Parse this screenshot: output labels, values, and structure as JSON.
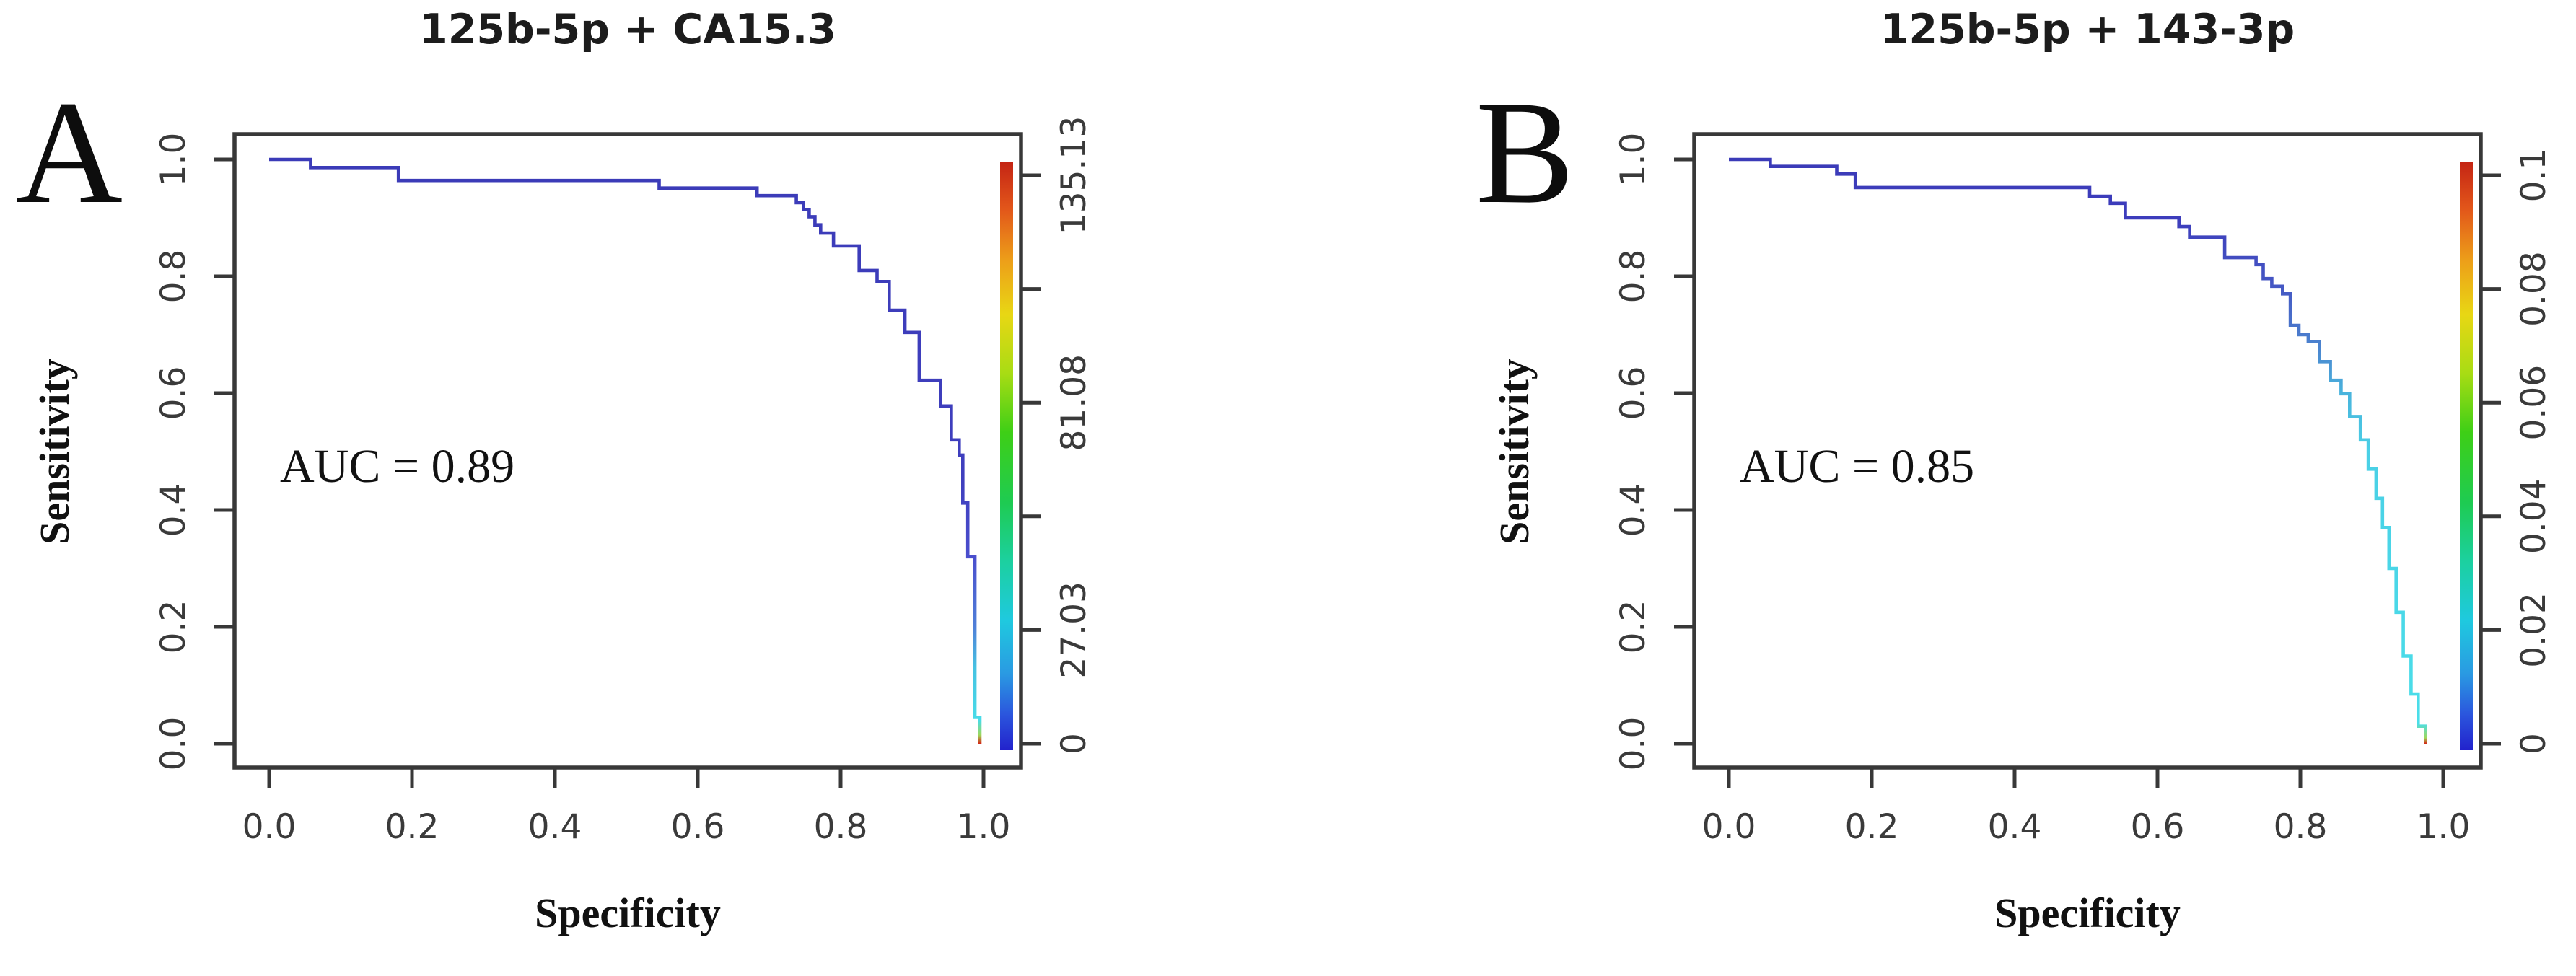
{
  "figure": {
    "background": "#ffffff",
    "panels": [
      {
        "label": "A",
        "title": "125b-5p + CA15.3",
        "auc_text": "AUC = 0.89",
        "x_label": "Specificity",
        "y_label": "Sensitivity",
        "x_tick_labels": [
          "0.0",
          "0.2",
          "0.4",
          "0.6",
          "0.8",
          "1.0"
        ],
        "y_tick_labels": [
          "1.0",
          "0.8",
          "0.6",
          "0.4",
          "0.2",
          "0.0"
        ],
        "threshold_tick_labels": [
          "135.13",
          "",
          "81.08",
          "",
          "27.03",
          "0"
        ]
      },
      {
        "label": "B",
        "title": "125b-5p + 143-3p",
        "auc_text": "AUC = 0.85",
        "x_label": "Specificity",
        "y_label": "Sensitivity",
        "x_tick_labels": [
          "0.0",
          "0.2",
          "0.4",
          "0.6",
          "0.8",
          "1.0"
        ],
        "y_tick_labels": [
          "1.0",
          "0.8",
          "0.6",
          "0.4",
          "0.2",
          "0.0"
        ],
        "threshold_tick_labels": [
          "0.1",
          "0.08",
          "0.06",
          "0.04",
          "0.02",
          "0"
        ]
      }
    ],
    "colorbar_gradient_top_to_bottom": [
      [
        0.0,
        "#c42414"
      ],
      [
        0.08,
        "#e2561a"
      ],
      [
        0.17,
        "#eda019"
      ],
      [
        0.26,
        "#e8d714"
      ],
      [
        0.36,
        "#a8dc14"
      ],
      [
        0.46,
        "#3ecf16"
      ],
      [
        0.58,
        "#1ecb52"
      ],
      [
        0.68,
        "#1cd0a0"
      ],
      [
        0.78,
        "#1fc9df"
      ],
      [
        0.87,
        "#2a9ae2"
      ],
      [
        0.94,
        "#2b55dd"
      ],
      [
        1.0,
        "#2222cc"
      ]
    ]
  },
  "chart_data": [
    {
      "type": "line",
      "subtype": "roc-step-curve",
      "title": "125b-5p + CA15.3",
      "xlabel": "Specificity",
      "ylabel": "Sensitivity",
      "xlim": [
        0,
        1
      ],
      "ylim": [
        0,
        1
      ],
      "x_ticks": [
        0.0,
        0.2,
        0.4,
        0.6,
        0.8,
        1.0
      ],
      "y_ticks": [
        1.0,
        0.8,
        0.6,
        0.4,
        0.2,
        0.0
      ],
      "grid": false,
      "auc": 0.89,
      "annotation": "AUC = 0.89",
      "curve_color_main": "#3b3bb8",
      "curve_color_tail": "#48dce8",
      "curve_color_tip": "#d42414",
      "curve_gradient": [
        [
          0.0,
          "#3b3bb8"
        ],
        [
          0.55,
          "#3f3fbe"
        ],
        [
          0.68,
          "#4a4ecd"
        ],
        [
          0.8,
          "#4f7fd8"
        ],
        [
          0.87,
          "#46c2e2"
        ],
        [
          0.96,
          "#48dce8"
        ],
        [
          0.985,
          "#9ed85a"
        ],
        [
          1.0,
          "#d42414"
        ]
      ],
      "colorbar": {
        "position": "right-inside",
        "tick_values_top_to_bottom": [
          135.13,
          108.1,
          81.08,
          54.05,
          27.03,
          0
        ],
        "tick_labels_top_to_bottom": [
          "135.13",
          "",
          "81.08",
          "",
          "27.03",
          "0"
        ]
      },
      "points": [
        [
          0.0,
          1.0
        ],
        [
          0.058,
          1.0
        ],
        [
          0.058,
          0.986
        ],
        [
          0.181,
          0.986
        ],
        [
          0.181,
          0.964
        ],
        [
          0.546,
          0.964
        ],
        [
          0.546,
          0.951
        ],
        [
          0.683,
          0.951
        ],
        [
          0.683,
          0.938
        ],
        [
          0.738,
          0.938
        ],
        [
          0.738,
          0.926
        ],
        [
          0.748,
          0.926
        ],
        [
          0.748,
          0.914
        ],
        [
          0.756,
          0.914
        ],
        [
          0.756,
          0.902
        ],
        [
          0.764,
          0.902
        ],
        [
          0.764,
          0.888
        ],
        [
          0.772,
          0.888
        ],
        [
          0.772,
          0.874
        ],
        [
          0.79,
          0.874
        ],
        [
          0.79,
          0.852
        ],
        [
          0.826,
          0.852
        ],
        [
          0.826,
          0.81
        ],
        [
          0.851,
          0.81
        ],
        [
          0.851,
          0.791
        ],
        [
          0.868,
          0.791
        ],
        [
          0.868,
          0.742
        ],
        [
          0.89,
          0.742
        ],
        [
          0.89,
          0.704
        ],
        [
          0.91,
          0.704
        ],
        [
          0.91,
          0.622
        ],
        [
          0.94,
          0.622
        ],
        [
          0.94,
          0.578
        ],
        [
          0.955,
          0.578
        ],
        [
          0.955,
          0.52
        ],
        [
          0.966,
          0.52
        ],
        [
          0.966,
          0.494
        ],
        [
          0.971,
          0.494
        ],
        [
          0.971,
          0.412
        ],
        [
          0.978,
          0.412
        ],
        [
          0.978,
          0.32
        ],
        [
          0.988,
          0.32
        ],
        [
          0.988,
          0.045
        ],
        [
          0.995,
          0.045
        ],
        [
          0.995,
          0.0
        ]
      ]
    },
    {
      "type": "line",
      "subtype": "roc-step-curve",
      "title": "125b-5p + 143-3p",
      "xlabel": "Specificity",
      "ylabel": "Sensitivity",
      "xlim": [
        0,
        1
      ],
      "ylim": [
        0,
        1
      ],
      "x_ticks": [
        0.0,
        0.2,
        0.4,
        0.6,
        0.8,
        1.0
      ],
      "y_ticks": [
        1.0,
        0.8,
        0.6,
        0.4,
        0.2,
        0.0
      ],
      "grid": false,
      "auc": 0.85,
      "annotation": "AUC = 0.85",
      "curve_color_main": "#3b3bb8",
      "curve_color_tail": "#4adee9",
      "curve_color_tip": "#d42414",
      "curve_gradient": [
        [
          0.0,
          "#3b3bb8"
        ],
        [
          0.1,
          "#3d3dbc"
        ],
        [
          0.22,
          "#4558c4"
        ],
        [
          0.32,
          "#4b83cf"
        ],
        [
          0.4,
          "#49b4dd"
        ],
        [
          0.5,
          "#4ad0e6"
        ],
        [
          0.965,
          "#4adee9"
        ],
        [
          0.99,
          "#9ed85a"
        ],
        [
          1.0,
          "#d42414"
        ]
      ],
      "colorbar": {
        "position": "right-inside",
        "tick_values_top_to_bottom": [
          0.1,
          0.08,
          0.06,
          0.04,
          0.02,
          0
        ],
        "tick_labels_top_to_bottom": [
          "0.1",
          "0.08",
          "0.06",
          "0.04",
          "0.02",
          "0"
        ]
      },
      "points": [
        [
          0.0,
          1.0
        ],
        [
          0.058,
          1.0
        ],
        [
          0.058,
          0.988
        ],
        [
          0.151,
          0.988
        ],
        [
          0.151,
          0.975
        ],
        [
          0.177,
          0.975
        ],
        [
          0.177,
          0.952
        ],
        [
          0.505,
          0.952
        ],
        [
          0.505,
          0.937
        ],
        [
          0.534,
          0.937
        ],
        [
          0.534,
          0.925
        ],
        [
          0.555,
          0.925
        ],
        [
          0.555,
          0.9
        ],
        [
          0.63,
          0.9
        ],
        [
          0.63,
          0.885
        ],
        [
          0.645,
          0.885
        ],
        [
          0.645,
          0.867
        ],
        [
          0.694,
          0.867
        ],
        [
          0.694,
          0.832
        ],
        [
          0.738,
          0.832
        ],
        [
          0.738,
          0.82
        ],
        [
          0.748,
          0.82
        ],
        [
          0.748,
          0.796
        ],
        [
          0.76,
          0.796
        ],
        [
          0.76,
          0.783
        ],
        [
          0.775,
          0.783
        ],
        [
          0.775,
          0.77
        ],
        [
          0.786,
          0.77
        ],
        [
          0.786,
          0.716
        ],
        [
          0.798,
          0.716
        ],
        [
          0.798,
          0.7
        ],
        [
          0.811,
          0.7
        ],
        [
          0.811,
          0.688
        ],
        [
          0.827,
          0.688
        ],
        [
          0.827,
          0.654
        ],
        [
          0.842,
          0.654
        ],
        [
          0.842,
          0.622
        ],
        [
          0.857,
          0.622
        ],
        [
          0.857,
          0.599
        ],
        [
          0.869,
          0.599
        ],
        [
          0.869,
          0.56
        ],
        [
          0.884,
          0.56
        ],
        [
          0.884,
          0.52
        ],
        [
          0.895,
          0.52
        ],
        [
          0.895,
          0.47
        ],
        [
          0.906,
          0.47
        ],
        [
          0.906,
          0.42
        ],
        [
          0.915,
          0.42
        ],
        [
          0.915,
          0.37
        ],
        [
          0.924,
          0.37
        ],
        [
          0.924,
          0.3
        ],
        [
          0.934,
          0.3
        ],
        [
          0.934,
          0.225
        ],
        [
          0.944,
          0.225
        ],
        [
          0.944,
          0.15
        ],
        [
          0.955,
          0.15
        ],
        [
          0.955,
          0.085
        ],
        [
          0.965,
          0.085
        ],
        [
          0.965,
          0.03
        ],
        [
          0.975,
          0.03
        ],
        [
          0.975,
          0.0
        ]
      ]
    }
  ]
}
